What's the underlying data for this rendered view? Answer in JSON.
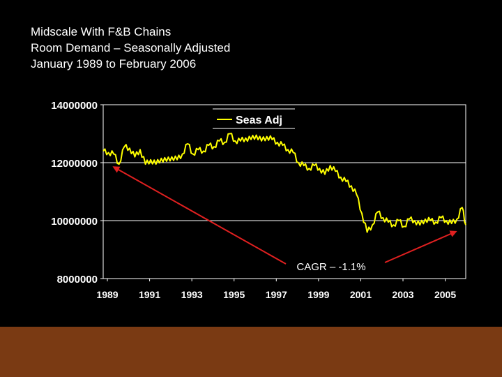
{
  "slide": {
    "title_lines": [
      "Midscale With F&B Chains",
      "Room Demand – Seasonally Adjusted",
      "January 1989 to February 2006"
    ]
  },
  "colors": {
    "background": "#000000",
    "plot_area": "#000000",
    "series": "#ffff00",
    "arrow": "#e02020",
    "footer": "#7a3a13",
    "grid": "#ffffff",
    "text": "#ffffff"
  },
  "chart_data": {
    "type": "line",
    "title": "",
    "xlabel": "",
    "ylabel": "",
    "xlim": [
      1989.0,
      2006.17
    ],
    "ylim": [
      8000000,
      14000000
    ],
    "yticks": [
      8000000,
      10000000,
      12000000,
      14000000
    ],
    "ytick_labels": [
      "8000000",
      "10000000",
      "12000000",
      "14000000"
    ],
    "xticks": [
      1989,
      1991,
      1993,
      1995,
      1997,
      1999,
      2001,
      2003,
      2005
    ],
    "xtick_labels": [
      "1989",
      "1991",
      "1993",
      "1995",
      "1997",
      "1999",
      "2001",
      "2003",
      "2005"
    ],
    "grid": "horizontal",
    "legend": {
      "position": "top-center",
      "entries": [
        "Seas Adj"
      ]
    },
    "series": [
      {
        "name": "Seas Adj",
        "x": [
          1989.0,
          1989.25,
          1989.5,
          1989.75,
          1990.0,
          1990.25,
          1990.5,
          1990.75,
          1991.0,
          1991.25,
          1991.5,
          1991.75,
          1992.0,
          1992.25,
          1992.5,
          1992.75,
          1993.0,
          1993.25,
          1993.5,
          1993.75,
          1994.0,
          1994.25,
          1994.5,
          1994.75,
          1995.0,
          1995.25,
          1995.5,
          1995.75,
          1996.0,
          1996.25,
          1996.5,
          1996.75,
          1997.0,
          1997.25,
          1997.5,
          1997.75,
          1998.0,
          1998.25,
          1998.5,
          1998.75,
          1999.0,
          1999.25,
          1999.5,
          1999.75,
          2000.0,
          2000.25,
          2000.5,
          2000.75,
          2001.0,
          2001.25,
          2001.5,
          2001.75,
          2002.0,
          2002.25,
          2002.5,
          2002.75,
          2003.0,
          2003.25,
          2003.5,
          2003.75,
          2004.0,
          2004.25,
          2004.5,
          2004.75,
          2005.0,
          2005.25,
          2005.5,
          2005.75,
          2006.0,
          2006.17
        ],
        "values": [
          12400000,
          12350000,
          12300000,
          11950000,
          12550000,
          12500000,
          12200000,
          12450000,
          11950000,
          12100000,
          11950000,
          12150000,
          12050000,
          12200000,
          12100000,
          12300000,
          12650000,
          12300000,
          12450000,
          12400000,
          12600000,
          12550000,
          12750000,
          12700000,
          13000000,
          12750000,
          12750000,
          12850000,
          12800000,
          12950000,
          12750000,
          12900000,
          12800000,
          12700000,
          12600000,
          12450000,
          12350000,
          12000000,
          11900000,
          11800000,
          11900000,
          11800000,
          11600000,
          11900000,
          11700000,
          11500000,
          11350000,
          11200000,
          10900000,
          10250000,
          9600000,
          9850000,
          10300000,
          10100000,
          9950000,
          9850000,
          10000000,
          9800000,
          10050000,
          10000000,
          9850000,
          10050000,
          10000000,
          9950000,
          10100000,
          10000000,
          9900000,
          10050000,
          10450000,
          9850000
        ]
      }
    ],
    "annotations": [
      {
        "text": "CAGR – -1.1%",
        "arrow_from": [
          1989.5,
          11850000
        ],
        "arrow_to": [
          2005.7,
          9620000
        ]
      }
    ]
  }
}
